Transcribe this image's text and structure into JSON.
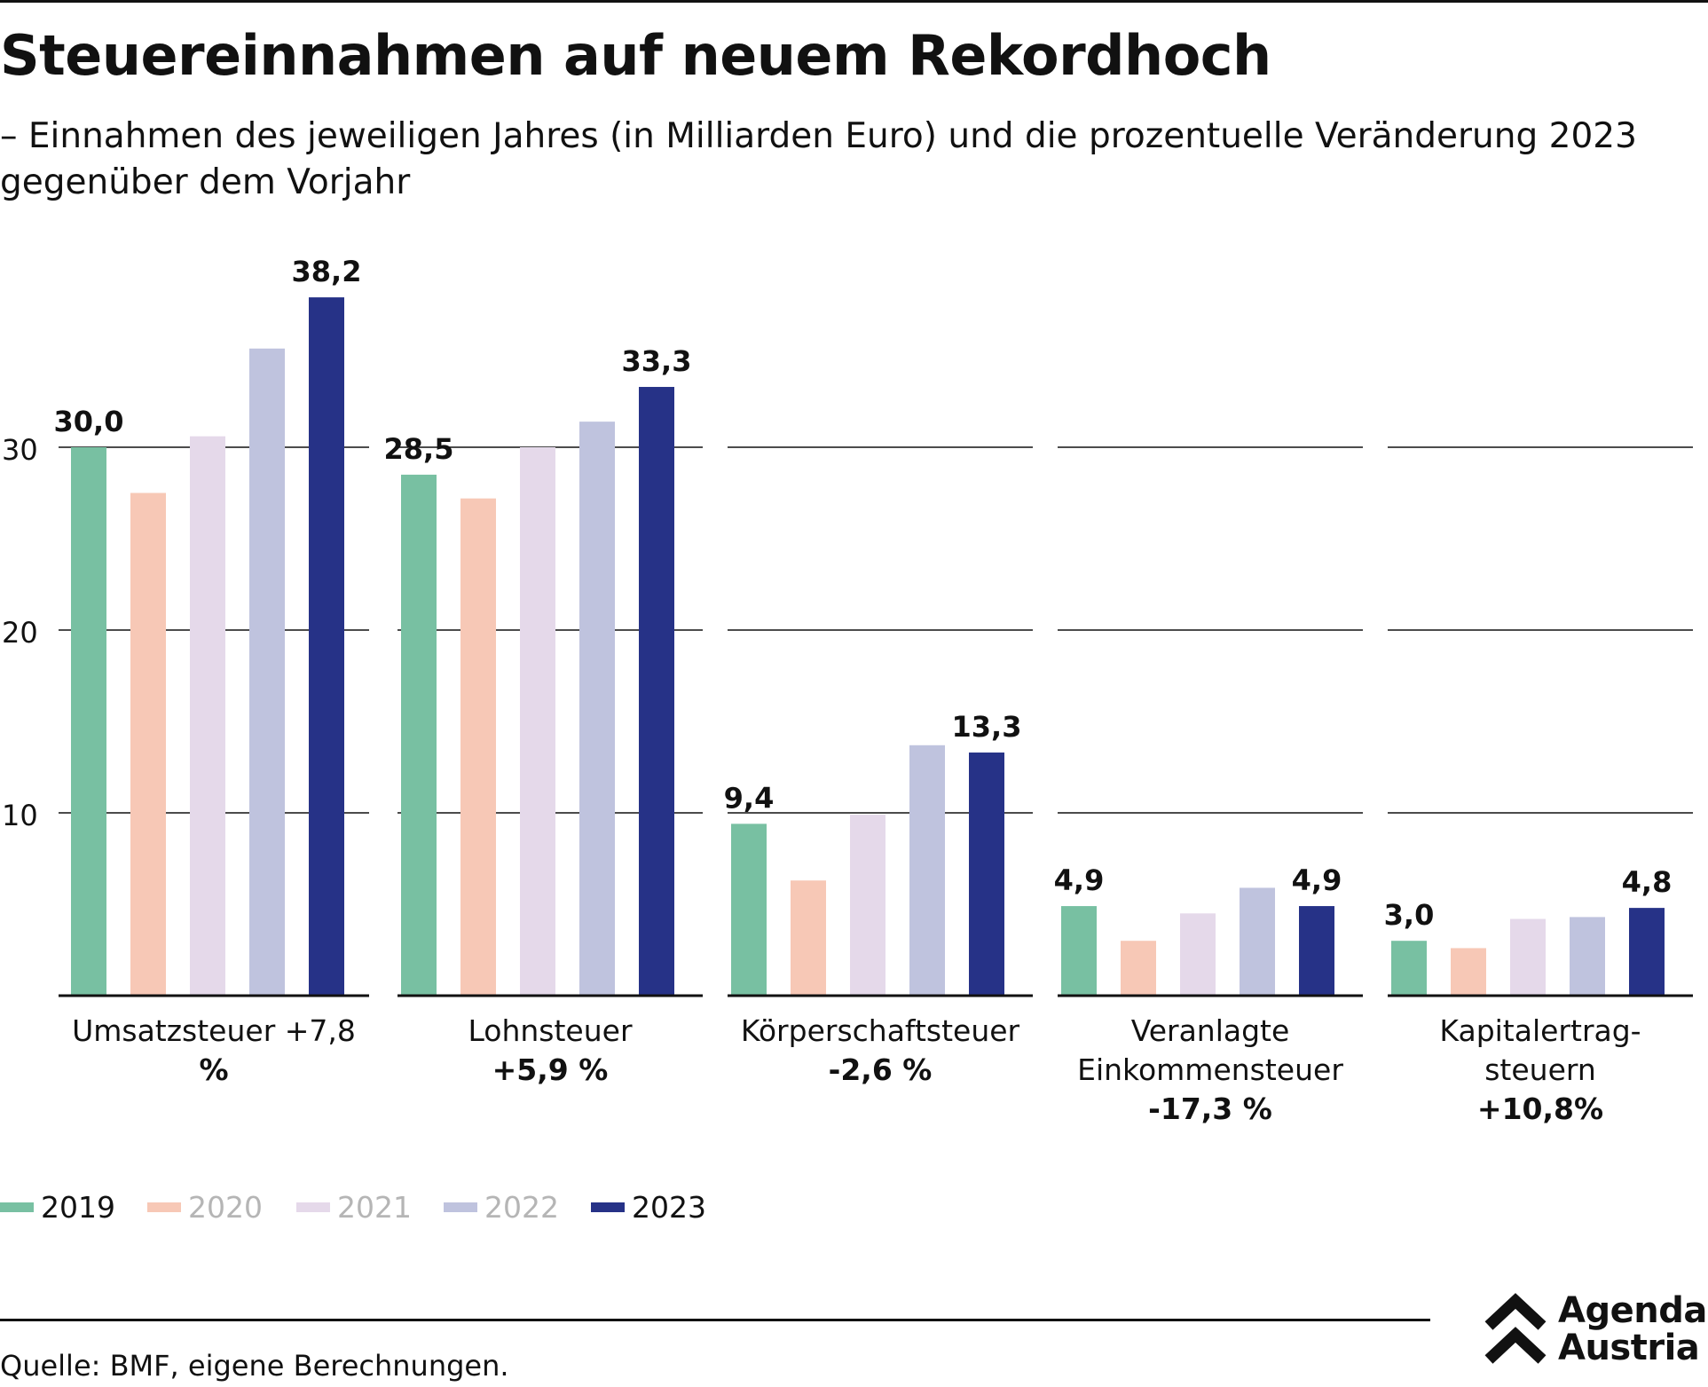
{
  "title": "Steuereinnahmen auf neuem Rekordhoch",
  "subtitle": "– Einnahmen des jeweiligen Jahres (in Milliarden Euro) und die prozentuelle Veränderung 2023 gegenüber dem Vorjahr",
  "source": "Quelle: BMF, eigene Berechnungen.",
  "logo": {
    "line1": "Agenda",
    "line2": "Austria"
  },
  "chart_data": {
    "type": "bar",
    "title": "Steuereinnahmen auf neuem Rekordhoch",
    "ylim": [
      0,
      40
    ],
    "yticks": [
      10,
      20,
      30
    ],
    "grid": true,
    "legend_position": "bottom-left",
    "years": [
      "2019",
      "2020",
      "2021",
      "2022",
      "2023"
    ],
    "colors": [
      "#78c0a2",
      "#f7c8b6",
      "#e5d9ea",
      "#bfc3de",
      "#263287"
    ],
    "legend_text_colors": [
      "#111111",
      "#b5b5b5",
      "#b5b5b5",
      "#b5b5b5",
      "#111111"
    ],
    "groups": [
      {
        "label": [
          "Umsatzsteuer +7,8",
          "%"
        ],
        "values": [
          30.0,
          27.5,
          30.6,
          35.4,
          38.2
        ],
        "labels": {
          "0": "30,0",
          "4": "38,2"
        }
      },
      {
        "label": [
          "Lohnsteuer",
          "+5,9 %"
        ],
        "values": [
          28.5,
          27.2,
          30.0,
          31.4,
          33.3
        ],
        "labels": {
          "0": "28,5",
          "4": "33,3"
        }
      },
      {
        "label": [
          "Körperschaftsteuer",
          "-2,6 %"
        ],
        "values": [
          9.4,
          6.3,
          9.9,
          13.7,
          13.3
        ],
        "labels": {
          "0": "9,4",
          "4": "13,3"
        }
      },
      {
        "label": [
          "Veranlagte",
          "Einkommensteuer",
          "-17,3 %"
        ],
        "values": [
          4.9,
          3.0,
          4.5,
          5.9,
          4.9
        ],
        "labels": {
          "0": "4,9",
          "4": "4,9"
        }
      },
      {
        "label": [
          "Kapitalertrag-",
          "steuern",
          "+10,8%"
        ],
        "values": [
          3.0,
          2.6,
          4.2,
          4.3,
          4.8
        ],
        "labels": {
          "0": "3,0",
          "4": "4,8"
        }
      }
    ]
  }
}
